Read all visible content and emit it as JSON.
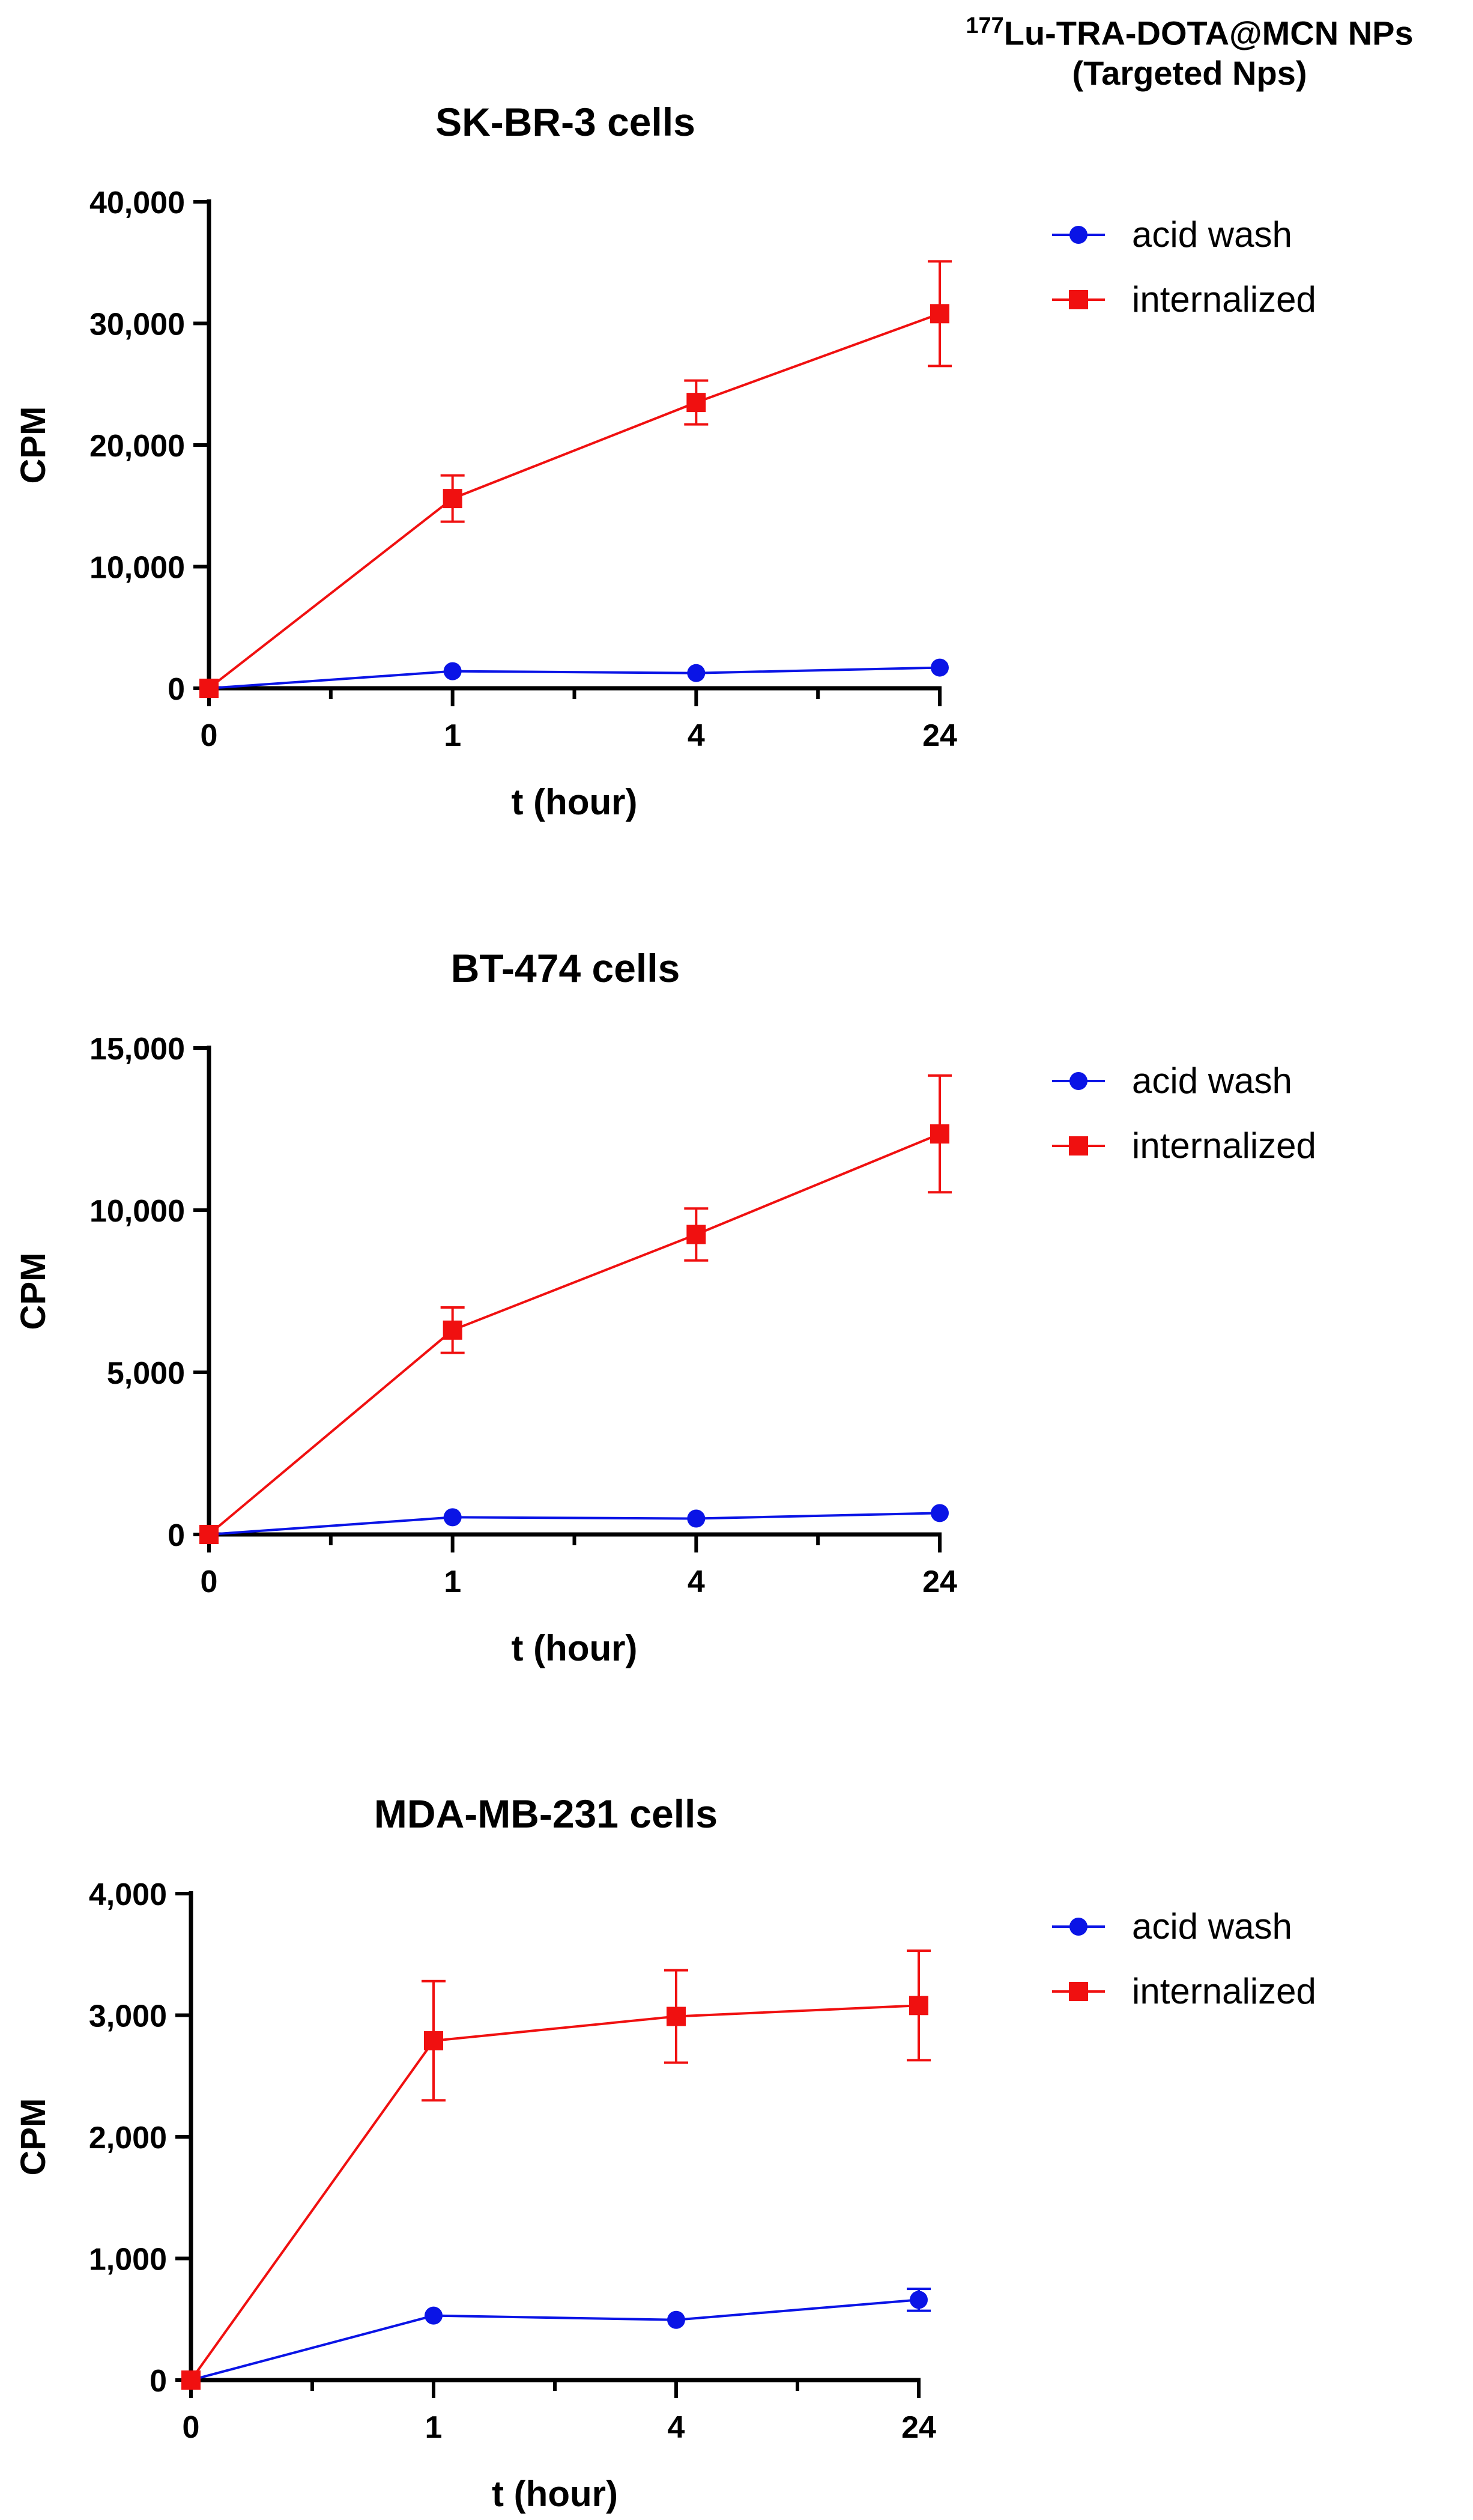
{
  "header": {
    "isotope_mass": "177",
    "title_line1": "Lu-TRA-DOTA@MCN NPs",
    "title_line2": "(Targeted Nps)"
  },
  "colors": {
    "acid_wash": "#0a14e6",
    "internalized": "#f01010",
    "axis": "#000000"
  },
  "chart_data": [
    {
      "type": "line",
      "title": "SK-BR-3 cells",
      "xlabel": "t (hour)",
      "ylabel": "CPM",
      "categories": [
        "0",
        "1",
        "4",
        "24"
      ],
      "ylim": [
        0,
        40000
      ],
      "yticks": [
        0,
        10000,
        20000,
        30000,
        40000
      ],
      "ytick_labels": [
        "0",
        "10,000",
        "20,000",
        "30,000",
        "40,000"
      ],
      "legend_position": "top-right",
      "series": [
        {
          "name": "acid wash",
          "marker": "circle",
          "values": [
            0,
            1400,
            1250,
            1700
          ],
          "errors": [
            0,
            0,
            0,
            0
          ]
        },
        {
          "name": "internalized",
          "marker": "square",
          "values": [
            0,
            15600,
            23500,
            30800
          ],
          "errors": [
            0,
            1900,
            1800,
            4300
          ]
        }
      ]
    },
    {
      "type": "line",
      "title": "BT-474 cells",
      "xlabel": "t (hour)",
      "ylabel": "CPM",
      "categories": [
        "0",
        "1",
        "4",
        "24"
      ],
      "ylim": [
        0,
        15000
      ],
      "yticks": [
        0,
        5000,
        10000,
        15000
      ],
      "ytick_labels": [
        "0",
        "5,000",
        "10,000",
        "15,000"
      ],
      "legend_position": "top-right",
      "series": [
        {
          "name": "acid wash",
          "marker": "circle",
          "values": [
            0,
            530,
            490,
            660
          ],
          "errors": [
            0,
            0,
            0,
            0
          ]
        },
        {
          "name": "internalized",
          "marker": "square",
          "values": [
            0,
            6300,
            9250,
            12350
          ],
          "errors": [
            0,
            700,
            800,
            1800
          ]
        }
      ]
    },
    {
      "type": "line",
      "title": "MDA-MB-231 cells",
      "xlabel": "t (hour)",
      "ylabel": "CPM",
      "categories": [
        "0",
        "1",
        "4",
        "24"
      ],
      "ylim": [
        0,
        4000
      ],
      "yticks": [
        0,
        1000,
        2000,
        3000,
        4000
      ],
      "ytick_labels": [
        "0",
        "1,000",
        "2,000",
        "3,000",
        "4,000"
      ],
      "legend_position": "top-right",
      "series": [
        {
          "name": "acid wash",
          "marker": "circle",
          "values": [
            0,
            530,
            495,
            660
          ],
          "errors": [
            0,
            0,
            0,
            90
          ]
        },
        {
          "name": "internalized",
          "marker": "square",
          "values": [
            0,
            2790,
            2990,
            3080
          ],
          "errors": [
            0,
            490,
            380,
            450
          ]
        }
      ]
    }
  ]
}
